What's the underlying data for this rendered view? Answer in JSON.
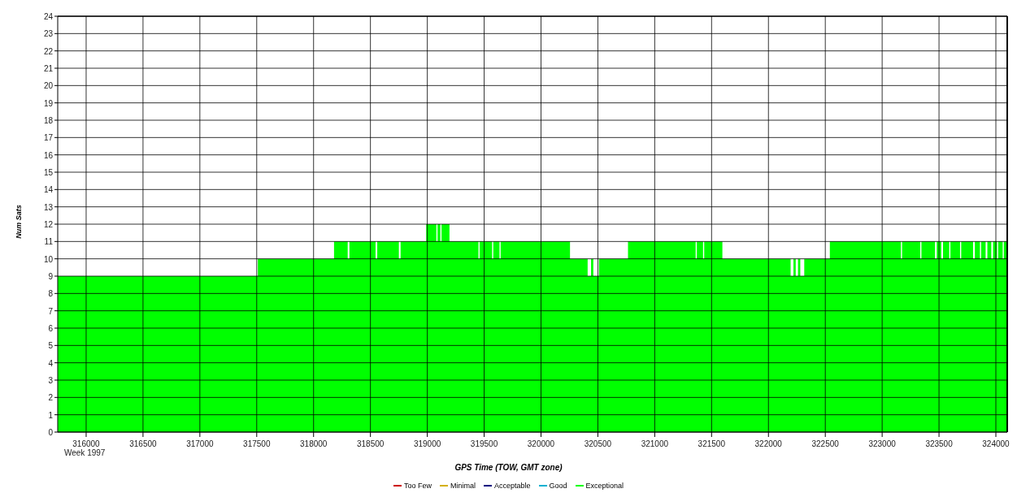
{
  "chart_data": {
    "type": "area",
    "xlabel": "GPS Time (TOW, GMT zone)",
    "ylabel": "Num Sats",
    "xlim": [
      315750,
      324100
    ],
    "xticks": [
      {
        "value": 316000,
        "label": "316000\nWeek 1997"
      },
      316500,
      317000,
      317500,
      318000,
      318500,
      319000,
      319500,
      320000,
      320500,
      321000,
      321500,
      322000,
      322500,
      323000,
      323500,
      324000
    ],
    "ylim": [
      0,
      24
    ],
    "yticks": [
      0,
      1,
      2,
      3,
      4,
      5,
      6,
      7,
      8,
      9,
      10,
      11,
      12,
      13,
      14,
      15,
      16,
      17,
      18,
      19,
      20,
      21,
      22,
      23,
      24
    ],
    "grid": true,
    "legend": "bottom",
    "series": [
      {
        "name": "Too Few",
        "color": "#cc0000"
      },
      {
        "name": "Minimal",
        "color": "#d4b000"
      },
      {
        "name": "Acceptable",
        "color": "#000080"
      },
      {
        "name": "Good",
        "color": "#00b0d0"
      },
      {
        "name": "Exceptional",
        "color": "#00ff00",
        "x": [
          315750,
          317510,
          318180,
          318300,
          318315,
          318545,
          318560,
          318750,
          318765,
          318990,
          319080,
          319090,
          319115,
          319125,
          319195,
          319450,
          319460,
          319570,
          319580,
          319635,
          319645,
          320255,
          320410,
          320440,
          320460,
          320510,
          320765,
          321360,
          321370,
          321425,
          321435,
          321595,
          322195,
          322220,
          322240,
          322260,
          322280,
          322315,
          322540,
          323165,
          323175,
          323335,
          323345,
          323465,
          323480,
          323520,
          323535,
          323590,
          323600,
          323685,
          323695,
          323800,
          323815,
          323860,
          323870,
          323910,
          323925,
          323960,
          323975,
          324010,
          324020,
          324060,
          324070,
          324100
        ],
        "values": [
          9,
          10,
          11,
          10,
          11,
          10,
          11,
          10,
          11,
          12,
          11,
          12,
          11,
          12,
          11,
          10,
          11,
          10,
          11,
          10,
          11,
          10,
          9,
          10,
          9,
          10,
          11,
          10,
          11,
          10,
          11,
          10,
          9,
          10,
          9,
          10,
          9,
          10,
          11,
          10,
          11,
          10,
          11,
          10,
          11,
          10,
          11,
          10,
          11,
          10,
          11,
          10,
          11,
          10,
          11,
          10,
          11,
          10,
          11,
          10,
          11,
          10,
          11,
          11
        ]
      }
    ]
  }
}
